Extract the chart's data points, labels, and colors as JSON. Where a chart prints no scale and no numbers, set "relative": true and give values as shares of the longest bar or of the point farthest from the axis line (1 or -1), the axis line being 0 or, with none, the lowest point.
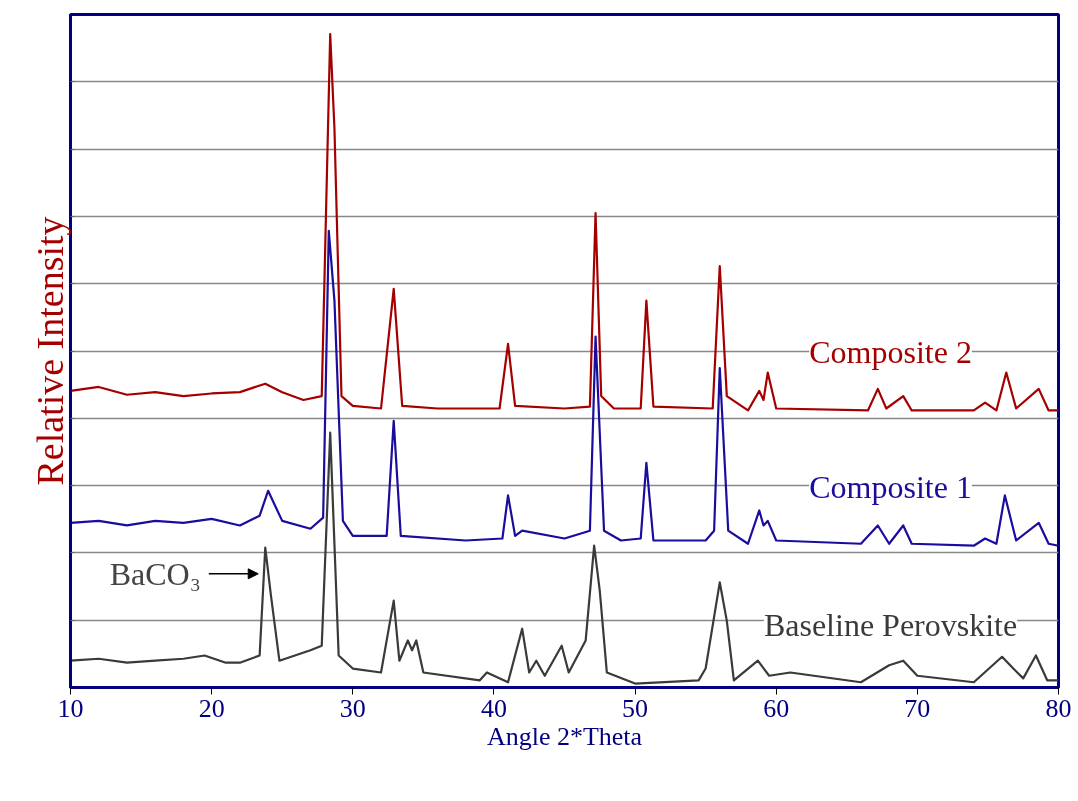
{
  "chart_data": {
    "type": "line",
    "relative": true,
    "xlabel": "Angle 2*Theta",
    "ylabel": "Relative Intensity",
    "xlim": [
      10,
      80
    ],
    "xticks": [
      10,
      20,
      30,
      40,
      50,
      60,
      70,
      80
    ],
    "grid": "y",
    "tick_labels": "x",
    "annotations": [
      {
        "text": "BaCO₃",
        "x": 23.3,
        "y": 0.174
      }
    ],
    "series": [
      {
        "name": "Composite 2",
        "color": "#a50000",
        "x": [
          10,
          12,
          14,
          16,
          18,
          20,
          22,
          23.8,
          25,
          26.5,
          27.8,
          28.4,
          28.7,
          29.2,
          30,
          32,
          32.9,
          33.5,
          36,
          40.4,
          41,
          41.5,
          45,
          46.8,
          47.2,
          47.6,
          48.5,
          50.4,
          50.8,
          51.3,
          55.5,
          56,
          56.5,
          58,
          58.8,
          59.1,
          59.4,
          60,
          66.5,
          67.2,
          67.8,
          69,
          69.6,
          74,
          74.8,
          75.6,
          76.3,
          77,
          78.6,
          79.3,
          80
        ],
        "values": [
          0.454,
          0.46,
          0.448,
          0.452,
          0.446,
          0.45,
          0.452,
          0.465,
          0.452,
          0.44,
          0.446,
          1.0,
          0.856,
          0.446,
          0.431,
          0.427,
          0.61,
          0.431,
          0.427,
          0.427,
          0.526,
          0.431,
          0.427,
          0.43,
          0.726,
          0.446,
          0.427,
          0.427,
          0.592,
          0.43,
          0.427,
          0.645,
          0.446,
          0.424,
          0.454,
          0.44,
          0.482,
          0.427,
          0.424,
          0.457,
          0.427,
          0.446,
          0.424,
          0.424,
          0.436,
          0.424,
          0.482,
          0.427,
          0.457,
          0.424,
          0.424
        ]
      },
      {
        "name": "Composite 1",
        "color": "#1a0d9e",
        "x": [
          10,
          12,
          14,
          16,
          18,
          20,
          22,
          23.4,
          24,
          25,
          27,
          27.9,
          28.3,
          28.7,
          29.3,
          30,
          32.4,
          32.9,
          33.4,
          38,
          40.6,
          41,
          41.5,
          42,
          45,
          46.8,
          47.2,
          47.8,
          49,
          50.4,
          50.8,
          51.3,
          55,
          55.6,
          56,
          56.6,
          58,
          58.8,
          59.1,
          59.4,
          60,
          66,
          67.2,
          68,
          69,
          69.6,
          74,
          74.8,
          75.6,
          76.2,
          77,
          78.6,
          79.3,
          80
        ],
        "values": [
          0.252,
          0.255,
          0.248,
          0.255,
          0.252,
          0.258,
          0.248,
          0.263,
          0.301,
          0.255,
          0.243,
          0.26,
          0.699,
          0.592,
          0.255,
          0.232,
          0.232,
          0.408,
          0.232,
          0.225,
          0.228,
          0.294,
          0.232,
          0.24,
          0.228,
          0.24,
          0.537,
          0.24,
          0.225,
          0.228,
          0.344,
          0.225,
          0.225,
          0.24,
          0.489,
          0.24,
          0.22,
          0.271,
          0.248,
          0.255,
          0.225,
          0.22,
          0.248,
          0.22,
          0.248,
          0.22,
          0.217,
          0.228,
          0.22,
          0.294,
          0.225,
          0.252,
          0.22,
          0.217
        ]
      },
      {
        "name": "Baseline Perovskite",
        "color": "#3a3a3a",
        "x": [
          10,
          12,
          14,
          16,
          18,
          19.5,
          21,
          22,
          23.4,
          23.8,
          24.2,
          24.8,
          27,
          27.8,
          28.4,
          29,
          30,
          32,
          32.9,
          33.3,
          33.9,
          34.2,
          34.5,
          35,
          39,
          39.5,
          41,
          42,
          42.5,
          43,
          43.6,
          44.2,
          44.8,
          45.3,
          46.5,
          47.1,
          47.5,
          48,
          50,
          54.5,
          55,
          56,
          56.5,
          57,
          58.7,
          59.5,
          61,
          66,
          68,
          69,
          70,
          74,
          76,
          76.8,
          77.5,
          78.4,
          79.2,
          80
        ],
        "values": [
          0.041,
          0.044,
          0.038,
          0.041,
          0.044,
          0.049,
          0.038,
          0.038,
          0.049,
          0.214,
          0.141,
          0.041,
          0.057,
          0.064,
          0.39,
          0.049,
          0.029,
          0.023,
          0.133,
          0.041,
          0.072,
          0.057,
          0.072,
          0.023,
          0.011,
          0.023,
          0.008,
          0.09,
          0.023,
          0.041,
          0.018,
          0.041,
          0.064,
          0.023,
          0.072,
          0.217,
          0.148,
          0.023,
          0.006,
          0.011,
          0.029,
          0.161,
          0.102,
          0.011,
          0.041,
          0.018,
          0.023,
          0.008,
          0.034,
          0.041,
          0.018,
          0.008,
          0.047,
          0.029,
          0.014,
          0.049,
          0.011,
          0.011
        ]
      }
    ]
  }
}
